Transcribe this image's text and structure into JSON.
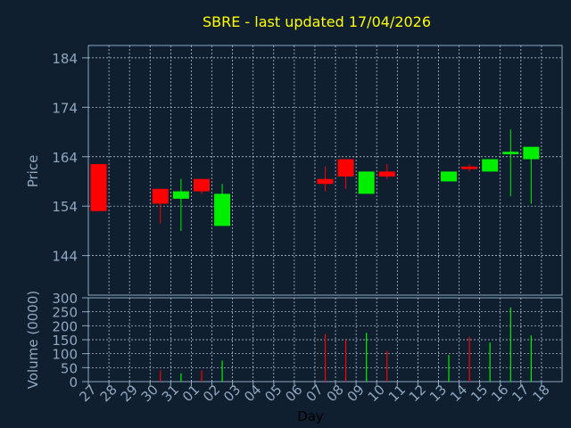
{
  "chart_data": [
    {
      "type": "candlestick",
      "title": "SBRE - last updated 17/04/2026",
      "ylabel": "Price",
      "ylim": [
        136,
        186.5
      ],
      "yticks": [
        144,
        154,
        164,
        174,
        184
      ],
      "grid": true,
      "colors": {
        "up": "#00ee00",
        "down": "#ff0000"
      },
      "categories": [
        "27",
        "28",
        "29",
        "30",
        "31",
        "01",
        "02",
        "03",
        "04",
        "05",
        "06",
        "07",
        "08",
        "09",
        "10",
        "11",
        "12",
        "13",
        "14",
        "15",
        "16",
        "17",
        "18"
      ],
      "candles": [
        {
          "day": "27",
          "open": 162.5,
          "high": 162.5,
          "low": 153.0,
          "close": 153.0
        },
        {
          "day": "30",
          "open": 157.5,
          "high": 157.5,
          "low": 150.5,
          "close": 154.5
        },
        {
          "day": "31",
          "open": 155.5,
          "high": 159.5,
          "low": 149.0,
          "close": 157.0
        },
        {
          "day": "01",
          "open": 159.5,
          "high": 159.5,
          "low": 156.5,
          "close": 157.0
        },
        {
          "day": "02",
          "open": 150.0,
          "high": 158.5,
          "low": 150.0,
          "close": 156.5
        },
        {
          "day": "07",
          "open": 159.5,
          "high": 162.0,
          "low": 157.0,
          "close": 158.5
        },
        {
          "day": "08",
          "open": 163.5,
          "high": 163.5,
          "low": 157.5,
          "close": 160.0
        },
        {
          "day": "09",
          "open": 156.5,
          "high": 161.0,
          "low": 156.5,
          "close": 161.0
        },
        {
          "day": "10",
          "open": 161.0,
          "high": 162.5,
          "low": 159.5,
          "close": 160.0
        },
        {
          "day": "13",
          "open": 159.0,
          "high": 161.0,
          "low": 159.0,
          "close": 161.0
        },
        {
          "day": "14",
          "open": 162.0,
          "high": 162.5,
          "low": 161.0,
          "close": 161.5
        },
        {
          "day": "15",
          "open": 161.0,
          "high": 163.5,
          "low": 161.0,
          "close": 163.5
        },
        {
          "day": "16",
          "open": 164.5,
          "high": 169.5,
          "low": 156.0,
          "close": 165.0
        },
        {
          "day": "17",
          "open": 163.5,
          "high": 166.0,
          "low": 154.5,
          "close": 166.0
        }
      ]
    },
    {
      "type": "bar",
      "ylabel": "Volume (0000)",
      "xlabel": "Day",
      "ylim": [
        0,
        300
      ],
      "yticks": [
        0,
        50,
        100,
        150,
        200,
        250,
        300
      ],
      "grid": true,
      "categories": [
        "27",
        "28",
        "29",
        "30",
        "31",
        "01",
        "02",
        "03",
        "04",
        "05",
        "06",
        "07",
        "08",
        "09",
        "10",
        "11",
        "12",
        "13",
        "14",
        "15",
        "16",
        "17",
        "18"
      ],
      "bars": [
        {
          "day": "30",
          "value": 40,
          "direction": "down"
        },
        {
          "day": "31",
          "value": 30,
          "direction": "up"
        },
        {
          "day": "01",
          "value": 40,
          "direction": "down"
        },
        {
          "day": "02",
          "value": 75,
          "direction": "up"
        },
        {
          "day": "07",
          "value": 170,
          "direction": "down"
        },
        {
          "day": "08",
          "value": 150,
          "direction": "down"
        },
        {
          "day": "09",
          "value": 175,
          "direction": "up"
        },
        {
          "day": "10",
          "value": 110,
          "direction": "down"
        },
        {
          "day": "13",
          "value": 95,
          "direction": "up"
        },
        {
          "day": "14",
          "value": 160,
          "direction": "down"
        },
        {
          "day": "15",
          "value": 140,
          "direction": "up"
        },
        {
          "day": "16",
          "value": 265,
          "direction": "up"
        },
        {
          "day": "17",
          "value": 165,
          "direction": "up"
        }
      ]
    }
  ]
}
